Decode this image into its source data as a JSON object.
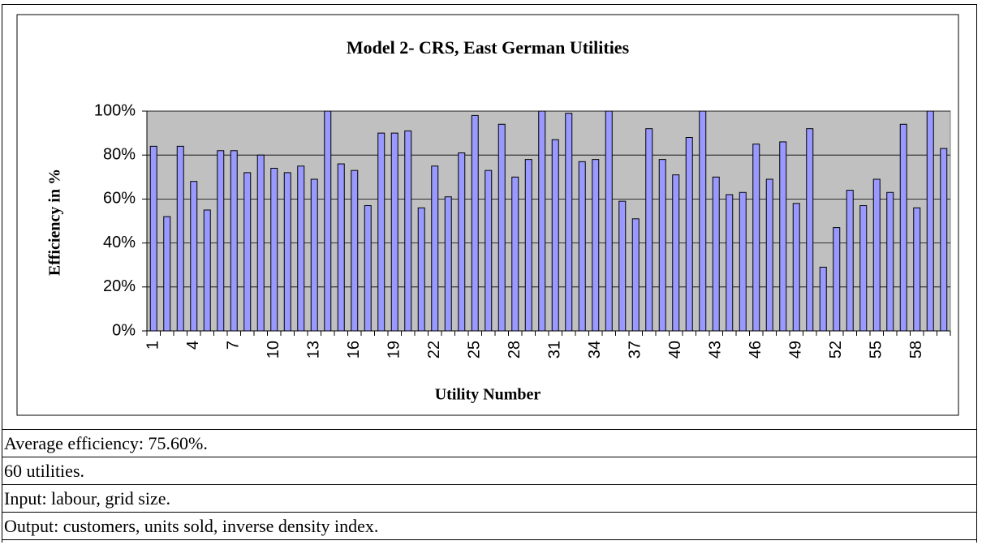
{
  "chart_data": {
    "type": "bar",
    "title": "Model 2- CRS, East German Utilities",
    "y_label": "Efficiency in %",
    "x_label": "Utility Number",
    "categories": [
      "1",
      null,
      null,
      "4",
      null,
      null,
      "7",
      null,
      null,
      "10",
      null,
      null,
      "13",
      null,
      null,
      "16",
      null,
      null,
      "19",
      null,
      null,
      "22",
      null,
      null,
      "25",
      null,
      null,
      "28",
      null,
      null,
      "31",
      null,
      null,
      "34",
      null,
      null,
      "37",
      null,
      null,
      "40",
      null,
      null,
      "43",
      null,
      null,
      "46",
      null,
      null,
      "49",
      null,
      null,
      "52",
      null,
      null,
      "55",
      null,
      null,
      "58",
      null,
      null
    ],
    "values": [
      84,
      52,
      84,
      68,
      55,
      82,
      82,
      72,
      80,
      74,
      72,
      75,
      69,
      100,
      76,
      73,
      57,
      90,
      90,
      91,
      56,
      75,
      61,
      81,
      98,
      73,
      94,
      70,
      78,
      100,
      87,
      99,
      77,
      78,
      100,
      59,
      51,
      92,
      78,
      71,
      88,
      100,
      70,
      62,
      63,
      85,
      69,
      86,
      58,
      92,
      29,
      47,
      64,
      57,
      69,
      63,
      94,
      56,
      100,
      83
    ],
    "color": "#9999ff",
    "plot_background": "#c0c0c0",
    "ylim": [
      0,
      100
    ],
    "yticks": [
      {
        "value": 0,
        "label": "0%"
      },
      {
        "value": 20,
        "label": "20%"
      },
      {
        "value": 40,
        "label": "40%"
      },
      {
        "value": 60,
        "label": "60%"
      },
      {
        "value": 80,
        "label": "80%"
      },
      {
        "value": 100,
        "label": "100%"
      }
    ],
    "grid": true
  },
  "notes": [
    "Average efficiency: 75.60%.",
    "60 utilities.",
    "Input: labour, grid size.",
    "Output: customers, units sold, inverse density index."
  ]
}
